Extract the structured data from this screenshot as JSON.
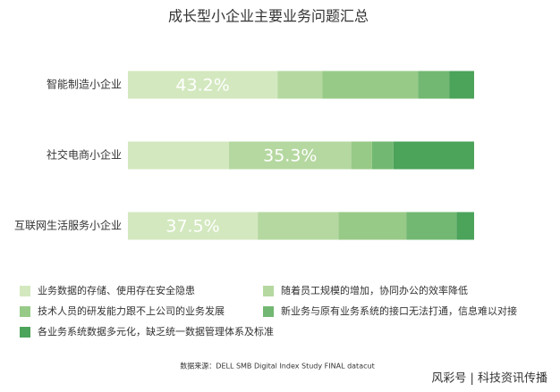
{
  "chart_data": {
    "type": "stacked-bar-horizontal",
    "title": "成长型小企业主要业务问题汇总",
    "categories": [
      "智能制造小企业",
      "社交电商小企业",
      "互联网生活服务小企业"
    ],
    "series": [
      {
        "name": "业务数据的存储、使用存在安全隐患",
        "color": "#d3e8bf",
        "values": [
          43.2,
          29.2,
          37.5
        ],
        "value_labels": [
          "43.2%",
          null,
          "37.5%"
        ]
      },
      {
        "name": "随着员工规模的增加，协同办公的效率降低",
        "color": "#b5d8a0",
        "values": [
          13,
          35.3,
          23.3
        ],
        "value_labels": [
          null,
          "35.3%",
          null
        ]
      },
      {
        "name": "技术人员的研发能力跟不上公司的业务发展",
        "color": "#98ca87",
        "values": [
          27.6,
          6,
          19.6
        ]
      },
      {
        "name": "新业务与原有业务系统的接口无法打通，信息难以对接",
        "color": "#72b872",
        "values": [
          9,
          6.2,
          14.5
        ]
      },
      {
        "name": "各业务系统数据多元化，缺乏统一数据管理体系及标准",
        "color": "#4ca35a",
        "values": [
          7.2,
          23.3,
          5.1
        ]
      }
    ],
    "source": "数据来源：DELL SMB Digital Index Study FINAL datacut",
    "watermark": "风彩号 | 科技资讯传播"
  }
}
